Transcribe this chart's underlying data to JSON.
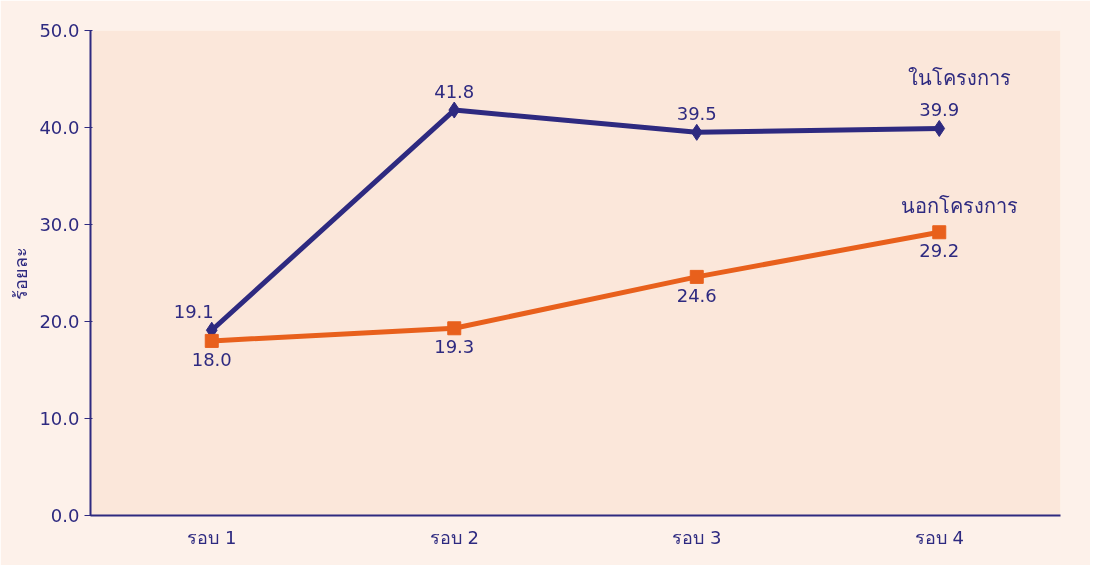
{
  "chart_data": {
    "type": "line",
    "ylabel": "ร้อยละ",
    "categories": [
      "รอบ 1",
      "รอบ 2",
      "รอบ 3",
      "รอบ 4"
    ],
    "series": [
      {
        "name": "ในโครงการ",
        "color": "#2e2a80",
        "marker": "diamond",
        "values": [
          19.1,
          41.8,
          39.5,
          39.9
        ],
        "value_labels": [
          "19.1",
          "41.8",
          "39.5",
          "39.9"
        ]
      },
      {
        "name": "นอกโครงการ",
        "color": "#e8601c",
        "marker": "square",
        "values": [
          18.0,
          19.3,
          24.6,
          29.2
        ],
        "value_labels": [
          "18.0",
          "19.3",
          "24.6",
          "29.2"
        ]
      }
    ],
    "ylim": [
      0,
      50
    ],
    "yticks": [
      {
        "value": 0,
        "label": "0.0"
      },
      {
        "value": 10,
        "label": "10.0"
      },
      {
        "value": 20,
        "label": "20.0"
      },
      {
        "value": 30,
        "label": "30.0"
      },
      {
        "value": 40,
        "label": "40.0"
      },
      {
        "value": 50,
        "label": "50.0"
      }
    ],
    "grid": false,
    "line_style": "solid"
  }
}
